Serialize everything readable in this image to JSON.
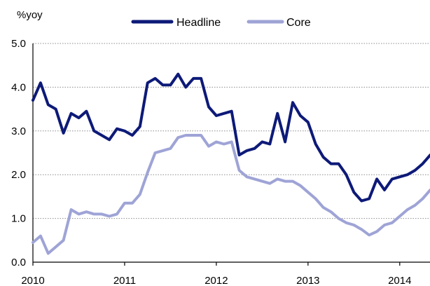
{
  "chart_data": {
    "type": "line",
    "ylabel": "%yoy",
    "ylim": [
      0,
      5
    ],
    "y_ticks": [
      "0.0",
      "1.0",
      "2.0",
      "3.0",
      "4.0",
      "5.0"
    ],
    "x_ticks": [
      "2010",
      "2011",
      "2012",
      "2013",
      "2014"
    ],
    "xlim": [
      2010.0,
      2014.33
    ],
    "grid": true,
    "legend_position": "top-center",
    "series": [
      {
        "name": "Headline",
        "color": "#0d1a78",
        "x": [
          2010.0,
          2010.0833,
          2010.1667,
          2010.25,
          2010.3333,
          2010.4167,
          2010.5,
          2010.5833,
          2010.6667,
          2010.75,
          2010.8333,
          2010.9167,
          2011.0,
          2011.0833,
          2011.1667,
          2011.25,
          2011.3333,
          2011.4167,
          2011.5,
          2011.5833,
          2011.6667,
          2011.75,
          2011.8333,
          2011.9167,
          2012.0,
          2012.0833,
          2012.1667,
          2012.25,
          2012.3333,
          2012.4167,
          2012.5,
          2012.5833,
          2012.6667,
          2012.75,
          2012.8333,
          2012.9167,
          2013.0,
          2013.0833,
          2013.1667,
          2013.25,
          2013.3333,
          2013.4167,
          2013.5,
          2013.5833,
          2013.6667,
          2013.75,
          2013.8333,
          2013.9167,
          2014.0,
          2014.0833,
          2014.1667,
          2014.25,
          2014.3333
        ],
        "values": [
          3.7,
          4.1,
          3.6,
          3.5,
          2.95,
          3.4,
          3.3,
          3.45,
          3.0,
          2.9,
          2.8,
          3.05,
          3.0,
          2.9,
          3.1,
          4.1,
          4.2,
          4.05,
          4.05,
          4.3,
          4.0,
          4.2,
          4.2,
          3.55,
          3.35,
          3.4,
          3.45,
          2.45,
          2.55,
          2.6,
          2.75,
          2.7,
          3.4,
          2.75,
          3.65,
          3.35,
          3.2,
          2.7,
          2.4,
          2.25,
          2.25,
          2.0,
          1.6,
          1.4,
          1.45,
          1.9,
          1.65,
          1.9,
          1.95,
          2.0,
          2.1,
          2.25,
          2.45
        ]
      },
      {
        "name": "Core",
        "color": "#9fa4d6",
        "x": [
          2010.0,
          2010.0833,
          2010.1667,
          2010.25,
          2010.3333,
          2010.4167,
          2010.5,
          2010.5833,
          2010.6667,
          2010.75,
          2010.8333,
          2010.9167,
          2011.0,
          2011.0833,
          2011.1667,
          2011.25,
          2011.3333,
          2011.4167,
          2011.5,
          2011.5833,
          2011.6667,
          2011.75,
          2011.8333,
          2011.9167,
          2012.0,
          2012.0833,
          2012.1667,
          2012.25,
          2012.3333,
          2012.4167,
          2012.5,
          2012.5833,
          2012.6667,
          2012.75,
          2012.8333,
          2012.9167,
          2013.0,
          2013.0833,
          2013.1667,
          2013.25,
          2013.3333,
          2013.4167,
          2013.5,
          2013.5833,
          2013.6667,
          2013.75,
          2013.8333,
          2013.9167,
          2014.0,
          2014.0833,
          2014.1667,
          2014.25,
          2014.3333
        ],
        "values": [
          0.45,
          0.6,
          0.2,
          0.35,
          0.5,
          1.2,
          1.1,
          1.15,
          1.1,
          1.1,
          1.05,
          1.1,
          1.35,
          1.35,
          1.55,
          2.05,
          2.5,
          2.55,
          2.6,
          2.85,
          2.9,
          2.9,
          2.9,
          2.65,
          2.75,
          2.7,
          2.75,
          2.1,
          1.95,
          1.9,
          1.85,
          1.8,
          1.9,
          1.85,
          1.85,
          1.75,
          1.6,
          1.45,
          1.25,
          1.15,
          1.0,
          0.9,
          0.85,
          0.75,
          0.62,
          0.7,
          0.85,
          0.9,
          1.05,
          1.2,
          1.3,
          1.45,
          1.65
        ]
      }
    ]
  }
}
